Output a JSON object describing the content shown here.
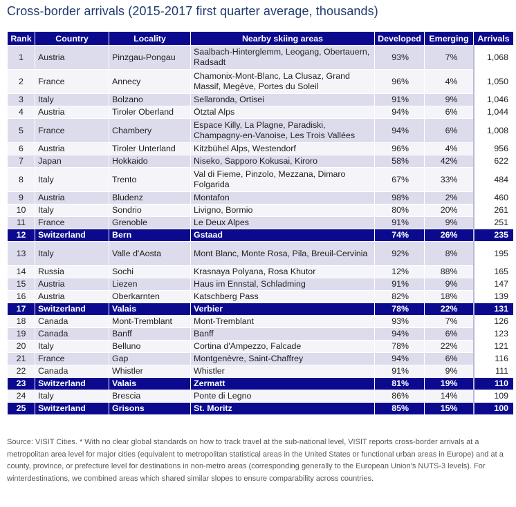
{
  "title": "Cross-border arrivals (2015-2017 first quarter average, thousands)",
  "columns": [
    "Rank",
    "Country",
    "Locality",
    "Nearby skiing areas",
    "Developed",
    "Emerging",
    "Arrivals"
  ],
  "rows": [
    {
      "rank": "1",
      "country": "Austria",
      "locality": "Pinzgau-Pongau",
      "areas": "Saalbach-Hinterglemm, Leogang, Obertauern, Radsadt",
      "developed": "93%",
      "emerging": "7%",
      "arrivals": "1,068",
      "tall": true
    },
    {
      "rank": "2",
      "country": "France",
      "locality": "Annecy",
      "areas": "Chamonix-Mont-Blanc, La Clusaz, Grand Massif, Megève, Portes du Soleil",
      "developed": "96%",
      "emerging": "4%",
      "arrivals": "1,050",
      "tall": true
    },
    {
      "rank": "3",
      "country": "Italy",
      "locality": "Bolzano",
      "areas": "Sellaronda, Ortisei",
      "developed": "91%",
      "emerging": "9%",
      "arrivals": "1,046"
    },
    {
      "rank": "4",
      "country": "Austria",
      "locality": "Tiroler Oberland",
      "areas": "Ötztal Alps",
      "developed": "94%",
      "emerging": "6%",
      "arrivals": "1,044"
    },
    {
      "rank": "5",
      "country": "France",
      "locality": "Chambery",
      "areas": "Espace Killy, La Plagne, Paradiski, Champagny-en-Vanoise, Les Trois Vallées",
      "developed": "94%",
      "emerging": "6%",
      "arrivals": "1,008",
      "tall": true
    },
    {
      "rank": "6",
      "country": "Austria",
      "locality": "Tiroler Unterland",
      "areas": "Kitzbühel Alps, Westendorf",
      "developed": "96%",
      "emerging": "4%",
      "arrivals": "956"
    },
    {
      "rank": "7",
      "country": "Japan",
      "locality": "Hokkaido",
      "areas": "Niseko, Sapporo Kokusai, Kiroro",
      "developed": "58%",
      "emerging": "42%",
      "arrivals": "622"
    },
    {
      "rank": "8",
      "country": "Italy",
      "locality": "Trento",
      "areas": "Val di Fieme, Pinzolo, Mezzana, Dimaro Folgarida",
      "developed": "67%",
      "emerging": "33%",
      "arrivals": "484",
      "tall": true
    },
    {
      "rank": "9",
      "country": "Austria",
      "locality": "Bludenz",
      "areas": "Montafon",
      "developed": "98%",
      "emerging": "2%",
      "arrivals": "460"
    },
    {
      "rank": "10",
      "country": "Italy",
      "locality": "Sondrio",
      "areas": "Livigno, Bormio",
      "developed": "80%",
      "emerging": "20%",
      "arrivals": "261"
    },
    {
      "rank": "11",
      "country": "France",
      "locality": "Grenoble",
      "areas": "Le Deux Alpes",
      "developed": "91%",
      "emerging": "9%",
      "arrivals": "251"
    },
    {
      "rank": "12",
      "country": "Switzerland",
      "locality": "Bern",
      "areas": "Gstaad",
      "developed": "74%",
      "emerging": "26%",
      "arrivals": "235",
      "highlight": true
    },
    {
      "rank": "13",
      "country": "Italy",
      "locality": "Valle d'Aosta",
      "areas": "Mont Blanc, Monte Rosa, Pila, Breuil-Cervinia",
      "developed": "92%",
      "emerging": "8%",
      "arrivals": "195",
      "tall": true
    },
    {
      "rank": "14",
      "country": "Russia",
      "locality": "Sochi",
      "areas": "Krasnaya Polyana, Rosa Khutor",
      "developed": "12%",
      "emerging": "88%",
      "arrivals": "165"
    },
    {
      "rank": "15",
      "country": "Austria",
      "locality": "Liezen",
      "areas": "Haus im Ennstal, Schladming",
      "developed": "91%",
      "emerging": "9%",
      "arrivals": "147"
    },
    {
      "rank": "16",
      "country": "Austria",
      "locality": "Oberkarnten",
      "areas": "Katschberg Pass",
      "developed": "82%",
      "emerging": "18%",
      "arrivals": "139"
    },
    {
      "rank": "17",
      "country": "Switzerland",
      "locality": "Valais",
      "areas": "Verbier",
      "developed": "78%",
      "emerging": "22%",
      "arrivals": "131",
      "highlight": true
    },
    {
      "rank": "18",
      "country": "Canada",
      "locality": "Mont-Tremblant",
      "areas": "Mont-Tremblant",
      "developed": "93%",
      "emerging": "7%",
      "arrivals": "126"
    },
    {
      "rank": "19",
      "country": "Canada",
      "locality": "Banff",
      "areas": "Banff",
      "developed": "94%",
      "emerging": "6%",
      "arrivals": "123"
    },
    {
      "rank": "20",
      "country": "Italy",
      "locality": "Belluno",
      "areas": "Cortina d'Ampezzo, Falcade",
      "developed": "78%",
      "emerging": "22%",
      "arrivals": "121"
    },
    {
      "rank": "21",
      "country": "France",
      "locality": "Gap",
      "areas": "Montgenèvre, Saint-Chaffrey",
      "developed": "94%",
      "emerging": "6%",
      "arrivals": "116"
    },
    {
      "rank": "22",
      "country": "Canada",
      "locality": "Whistler",
      "areas": "Whistler",
      "developed": "91%",
      "emerging": "9%",
      "arrivals": "111"
    },
    {
      "rank": "23",
      "country": "Switzerland",
      "locality": "Valais",
      "areas": "Zermatt",
      "developed": "81%",
      "emerging": "19%",
      "arrivals": "110",
      "highlight": true
    },
    {
      "rank": "24",
      "country": "Italy",
      "locality": "Brescia",
      "areas": "Ponte di Legno",
      "developed": "86%",
      "emerging": "14%",
      "arrivals": "109"
    },
    {
      "rank": "25",
      "country": "Switzerland",
      "locality": "Grisons",
      "areas": "St. Moritz",
      "developed": "85%",
      "emerging": "15%",
      "arrivals": "100",
      "highlight": true
    }
  ],
  "footer": "Source: VISIT Cities. * With no clear global standards on how to track travel at the sub-national level, VISIT reports cross-border arrivals at a metropolitan area level for major cities (equivalent to metropolitan statistical areas in the United States or functional urban areas in Europe) and at a county, province, or prefecture level for destinations in non-metro areas (corresponding generally to the European Union's NUTS-3 levels). For winterdestinations, we combined areas which shared similar slopes to ensure comparability across countries.",
  "colors": {
    "header": "#0b0a8f",
    "row_dark": "#dcdcec",
    "row_light": "#f4f4f9",
    "title": "#1f3a6e"
  }
}
